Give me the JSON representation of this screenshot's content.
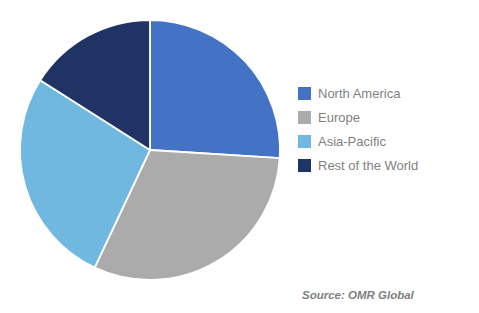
{
  "chart_data": {
    "type": "pie",
    "categories": [
      "North America",
      "Europe",
      "Asia-Pacific",
      "Rest of the World"
    ],
    "values": [
      26,
      31,
      27,
      16
    ],
    "colors": [
      "#4472C4",
      "#ABABAB",
      "#70B8E0",
      "#1F3464"
    ],
    "annotations": [
      "Source: OMR Global"
    ],
    "legend": "right"
  }
}
